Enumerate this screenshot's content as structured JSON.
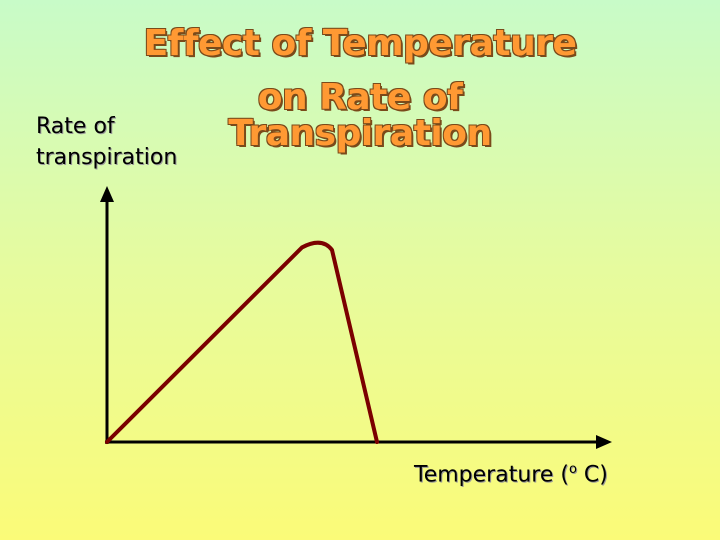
{
  "chart_data": {
    "type": "line",
    "title_lines": [
      "Effect of Temperature",
      "on Rate of Transpiration"
    ],
    "ylabel_lines": [
      "Rate of",
      "transpiration"
    ],
    "xlabel": "Temperature (o C)",
    "xlabel_parts": {
      "before": "Temperature (",
      "sup": "o",
      "after": " C)"
    },
    "series": [
      {
        "x": [
          0,
          39,
          43,
          45,
          54
        ],
        "y": [
          0,
          76,
          77,
          75,
          0
        ]
      }
    ],
    "xlim": [
      0,
      100
    ],
    "ylim": [
      0,
      100
    ],
    "grid": false,
    "line_color": "#7b0000",
    "axis_color": "#000000"
  }
}
